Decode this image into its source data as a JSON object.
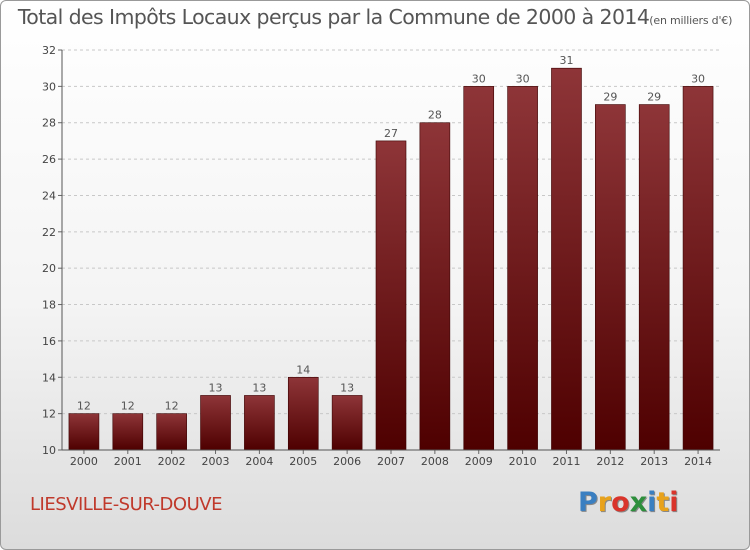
{
  "header": {
    "title": "Total des Impôts Locaux perçus par la Commune de 2000 à 2014",
    "unit": "(en milliers d'€)"
  },
  "footer": {
    "commune": "LIESVILLE-SUR-DOUVE",
    "logo": [
      "P",
      "r",
      "o",
      "x",
      "i",
      "t",
      "i"
    ],
    "logo_colors": [
      "#3a7fc1",
      "#e8a21b",
      "#d9342b",
      "#2d8f3c",
      "#3a7fc1",
      "#e8a21b",
      "#d9342b"
    ]
  },
  "chart_data": {
    "type": "bar",
    "categories": [
      "2000",
      "2001",
      "2002",
      "2003",
      "2004",
      "2005",
      "2006",
      "2007",
      "2008",
      "2009",
      "2010",
      "2011",
      "2012",
      "2013",
      "2014"
    ],
    "values": [
      12,
      12,
      12,
      13,
      13,
      14,
      13,
      27,
      28,
      30,
      30,
      31,
      29,
      29,
      30
    ],
    "ylim": [
      10,
      32
    ],
    "yticks": [
      10,
      12,
      14,
      16,
      18,
      20,
      22,
      24,
      26,
      28,
      30,
      32
    ],
    "grid": true,
    "bar_color_top": "#8e3538",
    "bar_color_bottom": "#4e0000"
  }
}
